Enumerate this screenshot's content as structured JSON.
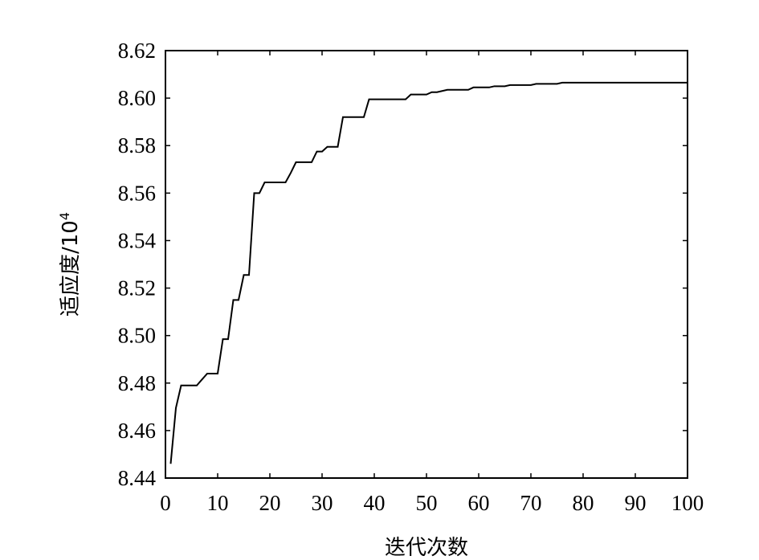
{
  "chart_data": {
    "type": "line",
    "title": "",
    "xlabel": "迭代次数",
    "ylabel": "适应度/10",
    "ylabel_superscript": "4",
    "xlim": [
      0,
      100
    ],
    "ylim": [
      8.44,
      8.62
    ],
    "xticks": [
      "0",
      "10",
      "20",
      "30",
      "40",
      "50",
      "60",
      "70",
      "80",
      "90",
      "100"
    ],
    "yticks": [
      "8.44",
      "8.46",
      "8.48",
      "8.50",
      "8.52",
      "8.54",
      "8.56",
      "8.58",
      "8.60",
      "8.62"
    ],
    "grid": false,
    "line_color": "#000000",
    "series": [
      {
        "x": [
          1,
          2,
          3,
          4,
          5,
          6,
          7,
          8,
          9,
          10,
          11,
          12,
          13,
          14,
          15,
          16,
          17,
          18,
          19,
          20,
          21,
          22,
          23,
          24,
          25,
          26,
          27,
          28,
          29,
          30,
          31,
          32,
          33,
          34,
          35,
          36,
          37,
          38,
          39,
          40,
          41,
          42,
          43,
          44,
          45,
          46,
          47,
          48,
          49,
          50,
          51,
          52,
          53,
          54,
          55,
          56,
          57,
          58,
          59,
          60,
          61,
          62,
          63,
          64,
          65,
          66,
          67,
          68,
          69,
          70,
          71,
          72,
          73,
          74,
          75,
          76,
          77,
          78,
          79,
          80,
          81,
          82,
          83,
          84,
          85,
          86,
          87,
          88,
          89,
          90,
          91,
          92,
          93,
          94,
          95,
          96,
          97,
          98,
          99,
          100
        ],
        "y": [
          8.446,
          8.4695,
          8.479,
          8.479,
          8.479,
          8.479,
          8.4815,
          8.484,
          8.484,
          8.484,
          8.4985,
          8.4985,
          8.515,
          8.515,
          8.5255,
          8.5255,
          8.56,
          8.56,
          8.5645,
          8.5645,
          8.5645,
          8.5645,
          8.5645,
          8.5685,
          8.573,
          8.573,
          8.573,
          8.573,
          8.5775,
          8.5775,
          8.5795,
          8.5795,
          8.5795,
          8.592,
          8.592,
          8.592,
          8.592,
          8.592,
          8.5995,
          8.5995,
          8.5995,
          8.5995,
          8.5995,
          8.5995,
          8.5995,
          8.5995,
          8.6015,
          8.6015,
          8.6015,
          8.6015,
          8.6025,
          8.6025,
          8.603,
          8.6035,
          8.6035,
          8.6035,
          8.6035,
          8.6035,
          8.6045,
          8.6045,
          8.6045,
          8.6045,
          8.605,
          8.605,
          8.605,
          8.6055,
          8.6055,
          8.6055,
          8.6055,
          8.6055,
          8.606,
          8.606,
          8.606,
          8.606,
          8.606,
          8.6065,
          8.6065,
          8.6065,
          8.6065,
          8.6065,
          8.6065,
          8.6065,
          8.6065,
          8.6065,
          8.6065,
          8.6065,
          8.6065,
          8.6065,
          8.6065,
          8.6065,
          8.6065,
          8.6065,
          8.6065,
          8.6065,
          8.6065,
          8.6065,
          8.6065,
          8.6065,
          8.6065,
          8.6065
        ]
      }
    ]
  }
}
